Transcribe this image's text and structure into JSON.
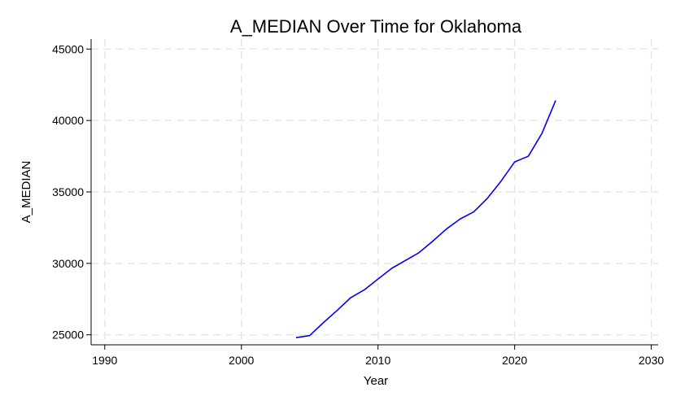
{
  "chart_data": {
    "type": "line",
    "title": "A_MEDIAN Over Time for Oklahoma",
    "xlabel": "Year",
    "ylabel": "A_MEDIAN",
    "xlim": [
      1989,
      2030.5
    ],
    "ylim": [
      24300,
      45700
    ],
    "xticks": [
      1990,
      2000,
      2010,
      2020,
      2030
    ],
    "yticks": [
      25000,
      30000,
      35000,
      40000,
      45000
    ],
    "grid": true,
    "series": [
      {
        "name": "A_MEDIAN",
        "color": "#0000ff",
        "x": [
          2004,
          2005,
          2006,
          2007,
          2008,
          2009,
          2010,
          2011,
          2012,
          2013,
          2014,
          2015,
          2016,
          2017,
          2018,
          2019,
          2020,
          2021,
          2022,
          2023
        ],
        "y": [
          24800,
          24950,
          25850,
          26700,
          27600,
          28150,
          28900,
          29650,
          30200,
          30750,
          31550,
          32400,
          33100,
          33600,
          34550,
          35750,
          37100,
          37500,
          39100,
          41400
        ]
      }
    ]
  }
}
